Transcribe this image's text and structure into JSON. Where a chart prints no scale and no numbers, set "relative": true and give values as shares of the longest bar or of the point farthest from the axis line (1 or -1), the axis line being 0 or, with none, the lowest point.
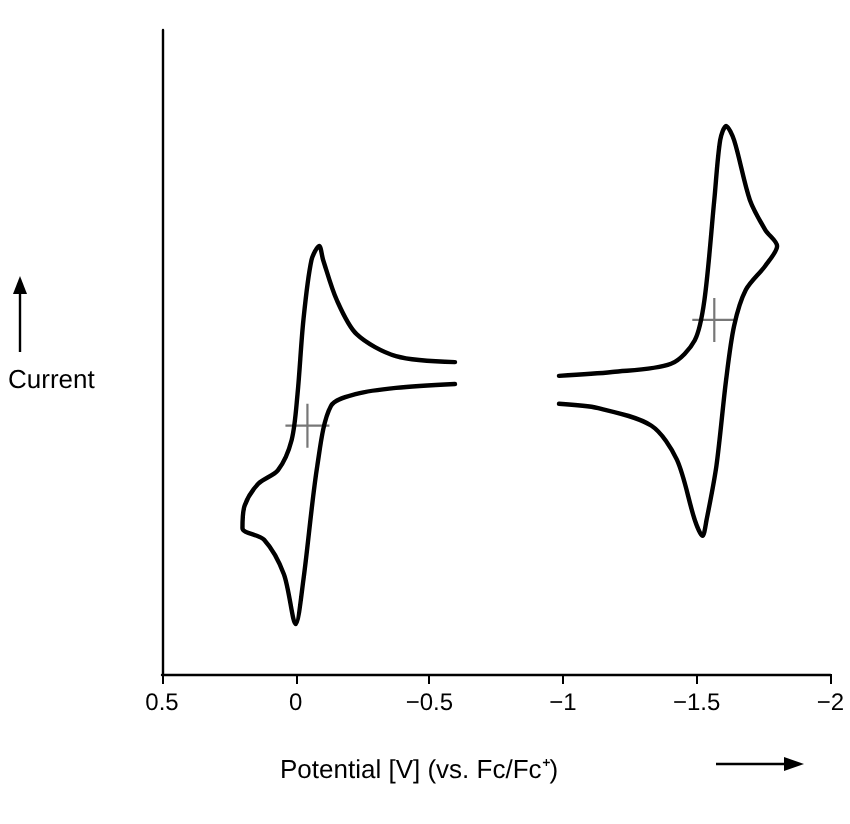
{
  "chart_data": {
    "type": "line",
    "relative": true,
    "xlabel": "Potential [V] (vs. Fc/Fc⁺)",
    "ylabel": "Current",
    "xlim": [
      0.5,
      -2
    ],
    "xticks": [
      0.5,
      0,
      {
        "value": -0.5,
        "label": "−0.5"
      },
      {
        "value": -1,
        "label": "−1"
      },
      {
        "value": -1.5,
        "label": "−1.5"
      },
      {
        "value": -2,
        "label": "−2"
      }
    ],
    "grid": false,
    "line_style": "solid",
    "series": [
      {
        "color": "#000000",
        "marker": "none",
        "x": [
          -0.596,
          -0.375,
          -0.228,
          -0.154,
          -0.103,
          -0.088,
          -0.059,
          -0.029,
          -0.007,
          0.015,
          0.066,
          0.14,
          0.191,
          0.199,
          0.118,
          0.044,
          0,
          -0.029,
          -0.081,
          -0.132,
          -0.228,
          -0.375,
          -0.596
        ],
        "values": [
          0.569,
          0.58,
          0.62,
          0.682,
          0.755,
          0.781,
          0.755,
          0.646,
          0.511,
          0.427,
          0.372,
          0.347,
          0.307,
          0.266,
          0.245,
          0.182,
          0.091,
          0.172,
          0.38,
          0.489,
          0.511,
          0.522,
          0.529
        ]
      },
      {
        "color": "#000000",
        "marker": "none",
        "x": [
          -0.985,
          -1.184,
          -1.404,
          -1.493,
          -1.529,
          -1.566,
          -1.588,
          -1.61,
          -1.64,
          -1.699,
          -1.757,
          -1.801,
          -1.757,
          -1.684,
          -1.64,
          -1.61,
          -1.574,
          -1.537,
          -1.522,
          -1.493,
          -1.426,
          -1.331,
          -1.132,
          -0.985
        ],
        "values": [
          0.544,
          0.551,
          0.566,
          0.609,
          0.682,
          0.865,
          0.974,
          1,
          0.974,
          0.865,
          0.81,
          0.781,
          0.745,
          0.701,
          0.635,
          0.536,
          0.38,
          0.281,
          0.252,
          0.281,
          0.391,
          0.453,
          0.485,
          0.493
        ]
      },
      {
        "type": "scatter",
        "color": "#555555",
        "marker": "cross",
        "x": [
          -0.044,
          -1.566
        ],
        "values": [
          0.453,
          0.646
        ]
      }
    ]
  }
}
